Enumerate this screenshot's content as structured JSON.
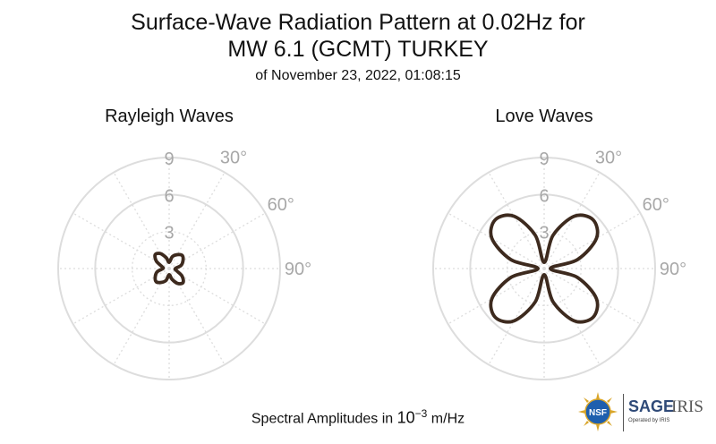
{
  "title_line1": "Surface-Wave Radiation Pattern at 0.02Hz for",
  "title_line2": "MW 6.1 (GCMT) TURKEY",
  "title_line3": "of November 23, 2022, 01:08:15",
  "caption": {
    "text": "Spectral Amplitudes in ",
    "base": "10",
    "exponent": "−3",
    "unit": " m/Hz"
  },
  "logos": {
    "nsf": "NSF",
    "sage": "SAGE",
    "iris": "IRIS",
    "operated": "Operated by IRIS"
  },
  "colors": {
    "pattern": "#3d2a1e",
    "grid": "#dddddd",
    "tick_text": "#a8a8a8"
  },
  "chart_data": [
    {
      "type": "polar-line",
      "title": "Rayleigh Waves",
      "r_ticks": [
        "3",
        "6",
        "9"
      ],
      "theta_ticks": [
        "30°",
        "60°",
        "90°"
      ],
      "rlim": [
        0,
        9
      ],
      "angular_direction": "clockwise",
      "zero_at": "top",
      "series": [
        {
          "theta_deg": [
            0,
            15,
            30,
            45,
            60,
            75,
            90,
            105,
            120,
            135,
            150,
            165,
            180,
            195,
            210,
            225,
            240,
            255,
            270,
            285,
            300,
            315,
            330,
            345
          ],
          "r": [
            0.5,
            1.0,
            1.3,
            1.5,
            1.3,
            1.0,
            0.5,
            0.6,
            1.2,
            1.6,
            1.4,
            0.9,
            0.5,
            1.0,
            1.3,
            1.5,
            1.3,
            1.0,
            0.5,
            0.6,
            1.2,
            1.6,
            1.4,
            0.9
          ]
        }
      ]
    },
    {
      "type": "polar-line",
      "title": "Love Waves",
      "r_ticks": [
        "3",
        "6",
        "9"
      ],
      "theta_ticks": [
        "30°",
        "60°",
        "90°"
      ],
      "rlim": [
        0,
        9
      ],
      "angular_direction": "clockwise",
      "zero_at": "top",
      "series": [
        {
          "theta_deg": [
            0,
            15,
            30,
            45,
            60,
            75,
            90,
            105,
            120,
            135,
            150,
            165,
            180,
            195,
            210,
            225,
            240,
            255,
            270,
            285,
            300,
            315,
            330,
            345
          ],
          "r": [
            0.5,
            2.8,
            4.9,
            5.6,
            4.9,
            2.8,
            0.5,
            2.8,
            4.9,
            5.6,
            4.9,
            2.8,
            0.5,
            2.8,
            4.9,
            5.6,
            4.9,
            2.8,
            0.5,
            2.8,
            4.9,
            5.6,
            4.9,
            2.8
          ]
        }
      ]
    }
  ]
}
